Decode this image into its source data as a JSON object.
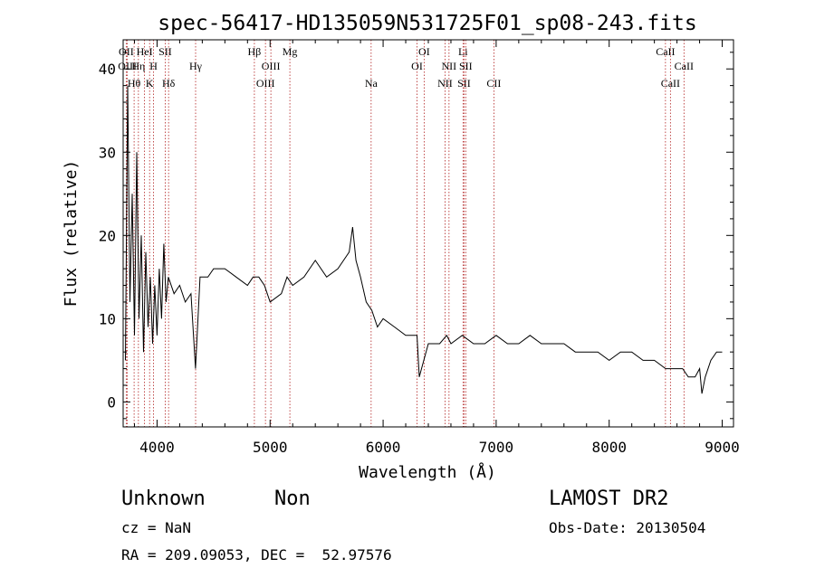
{
  "chart_data": {
    "type": "line",
    "title": "spec-56417-HD135059N531725F01_sp08-243.fits",
    "xlabel": "Wavelength (Å)",
    "ylabel": "Flux (relative)",
    "xlim": [
      3700,
      9100
    ],
    "ylim": [
      -3,
      43.5
    ],
    "xticks": [
      4000,
      5000,
      6000,
      7000,
      8000,
      9000
    ],
    "yticks": [
      0,
      10,
      20,
      30,
      40
    ],
    "grid": false,
    "line_color": "#000000",
    "marker_color": "#b22222",
    "series": [
      {
        "x": [
          3720,
          3740,
          3760,
          3780,
          3800,
          3820,
          3840,
          3860,
          3880,
          3900,
          3920,
          3940,
          3960,
          3980,
          4000,
          4020,
          4040,
          4060,
          4080,
          4100,
          4150,
          4200,
          4250,
          4300,
          4340,
          4380,
          4450,
          4500,
          4600,
          4700,
          4800,
          4850,
          4900,
          4950,
          5000,
          5100,
          5150,
          5200,
          5300,
          5400,
          5500,
          5600,
          5700,
          5730,
          5760,
          5800,
          5850,
          5900,
          5950,
          6000,
          6100,
          6200,
          6300,
          6320,
          6400,
          6500,
          6563,
          6600,
          6700,
          6800,
          6900,
          7000,
          7100,
          7200,
          7300,
          7400,
          7500,
          7600,
          7700,
          7800,
          7900,
          8000,
          8100,
          8200,
          8300,
          8400,
          8500,
          8600,
          8650,
          8700,
          8760,
          8800,
          8820,
          8850,
          8900,
          8950,
          9000
        ],
        "y": [
          5,
          38,
          12,
          25,
          8,
          30,
          10,
          20,
          6,
          18,
          9,
          15,
          7,
          14,
          8,
          16,
          10,
          19,
          12,
          15,
          13,
          14,
          12,
          13,
          4,
          15,
          15,
          16,
          16,
          15,
          14,
          15,
          15,
          14,
          12,
          13,
          15,
          14,
          15,
          17,
          15,
          16,
          18,
          21,
          17,
          15,
          12,
          11,
          9,
          10,
          9,
          8,
          8,
          3,
          7,
          7,
          8,
          7,
          8,
          7,
          7,
          8,
          7,
          7,
          8,
          7,
          7,
          7,
          6,
          6,
          6,
          5,
          6,
          6,
          5,
          5,
          4,
          4,
          4,
          3,
          3,
          4,
          1,
          3,
          5,
          6,
          6
        ]
      }
    ],
    "lines": [
      {
        "label": "OII",
        "wl": 3727,
        "row": 1
      },
      {
        "label": "OIII",
        "wl": 3737,
        "row": 2
      },
      {
        "label": "Hθ",
        "wl": 3797,
        "row": 3
      },
      {
        "label": "Hη",
        "wl": 3835,
        "row": 2
      },
      {
        "label": "HeI",
        "wl": 3889,
        "row": 1
      },
      {
        "label": "K",
        "wl": 3934,
        "row": 3
      },
      {
        "label": "H",
        "wl": 3969,
        "row": 2
      },
      {
        "label": "SII",
        "wl": 4072,
        "row": 1
      },
      {
        "label": "Hδ",
        "wl": 4102,
        "row": 3
      },
      {
        "label": "Hγ",
        "wl": 4341,
        "row": 2
      },
      {
        "label": "Hβ",
        "wl": 4861,
        "row": 1
      },
      {
        "label": "OIII",
        "wl": 4959,
        "row": 3
      },
      {
        "label": "OIII",
        "wl": 5007,
        "row": 2
      },
      {
        "label": "Mg",
        "wl": 5175,
        "row": 1
      },
      {
        "label": "Na",
        "wl": 5894,
        "row": 3
      },
      {
        "label": "OI",
        "wl": 6300,
        "row": 2
      },
      {
        "label": "OI",
        "wl": 6363,
        "row": 1
      },
      {
        "label": "NII",
        "wl": 6548,
        "row": 3
      },
      {
        "label": "NII",
        "wl": 6583,
        "row": 2
      },
      {
        "label": "Li",
        "wl": 6707,
        "row": 1
      },
      {
        "label": "SII",
        "wl": 6716,
        "row": 3
      },
      {
        "label": "SII",
        "wl": 6731,
        "row": 2
      },
      {
        "label": "CII",
        "wl": 6980,
        "row": 3
      },
      {
        "label": "CaII",
        "wl": 8498,
        "row": 1
      },
      {
        "label": "CaII",
        "wl": 8542,
        "row": 3
      },
      {
        "label": "CaII",
        "wl": 8662,
        "row": 2
      }
    ]
  },
  "info": {
    "class": "Unknown",
    "subclass": "Non",
    "cz": "cz = NaN",
    "coords": "RA = 209.09053, DEC =  52.97576",
    "survey": "LAMOST DR2",
    "obs_date": "Obs-Date: 20130504"
  }
}
